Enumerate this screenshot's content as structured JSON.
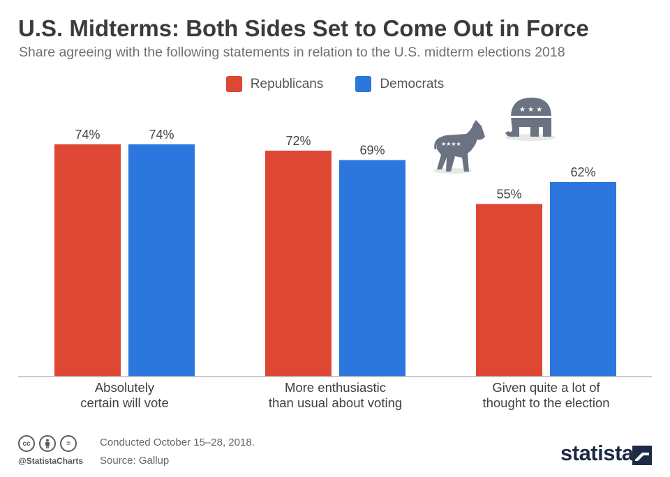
{
  "title": "U.S. Midterms: Both Sides Set to Come Out in Force",
  "subtitle": "Share agreeing with the following statements in relation to the U.S. midterm elections 2018",
  "colors": {
    "republicans": "#dd4733",
    "democrats": "#2b77dd",
    "baseline": "#bbbbbb",
    "icon": "#6b7382"
  },
  "legend": {
    "republicans": "Republicans",
    "democrats": "Democrats"
  },
  "chart_data": {
    "type": "bar",
    "categories": [
      [
        "Absolutely",
        "certain will vote"
      ],
      [
        "More enthusiastic",
        "than usual about voting"
      ],
      [
        "Given quite a lot of",
        "thought to the election"
      ]
    ],
    "series": [
      {
        "name": "Republicans",
        "values": [
          74,
          72,
          55
        ],
        "labels": [
          "74%",
          "72%",
          "55%"
        ]
      },
      {
        "name": "Democrats",
        "values": [
          74,
          69,
          62
        ],
        "labels": [
          "74%",
          "69%",
          "62%"
        ]
      }
    ],
    "ylim": [
      0,
      100
    ],
    "xlabel": "",
    "ylabel": "",
    "grid": false
  },
  "footer": {
    "conducted": "Conducted October 15–28, 2018.",
    "source": "Source: Gallup",
    "handle": "@StatistaCharts",
    "brand": "statista",
    "cc_icons": [
      "cc",
      "by",
      "="
    ]
  }
}
